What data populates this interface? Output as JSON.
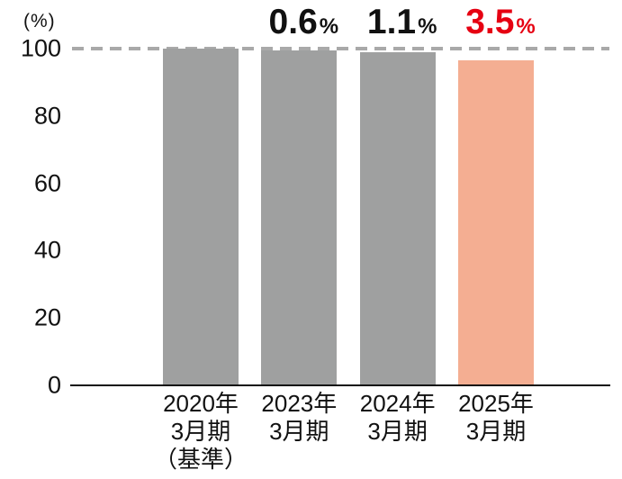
{
  "chart_data": {
    "type": "bar",
    "title": "",
    "xlabel": "",
    "ylabel": "",
    "y_unit_label": "(%)",
    "ylim": [
      0,
      100
    ],
    "yticks": [
      "0",
      "20",
      "40",
      "60",
      "80",
      "100"
    ],
    "ytick_values": [
      0,
      20,
      40,
      60,
      80,
      100
    ],
    "categories": [
      "2020年\n3月期\n（基準）",
      "2023年\n3月期",
      "2024年\n3月期",
      "2025年\n3月期"
    ],
    "values": [
      100,
      99.4,
      98.9,
      96.5
    ],
    "bar_colors": [
      "#9fa0a0",
      "#9fa0a0",
      "#9fa0a0",
      "#f4ae92"
    ],
    "annotations": [
      {
        "text": "",
        "suffix": "",
        "color": "#111111"
      },
      {
        "text": "0.6",
        "suffix": "%",
        "color": "#111111"
      },
      {
        "text": "1.1",
        "suffix": "%",
        "color": "#111111"
      },
      {
        "text": "3.5",
        "suffix": "%",
        "color": "#e60012"
      }
    ],
    "reference_line": {
      "value": 100,
      "style": "dashed",
      "color": "#a9a9a9"
    },
    "grid": false,
    "legend": false
  },
  "colors": {
    "background": "#ffffff",
    "bar_gray": "#9fa0a0",
    "bar_highlight": "#f4ae92",
    "annotation_red": "#e60012",
    "axis": "#111111",
    "dashed_line": "#a9a9a9"
  }
}
